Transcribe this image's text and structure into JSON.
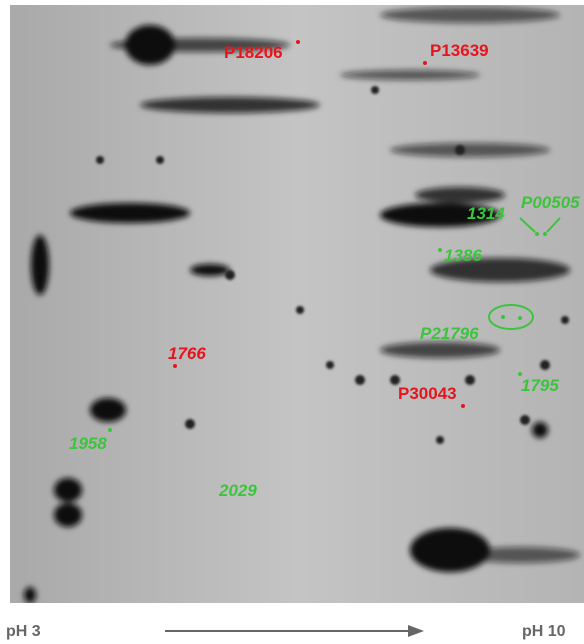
{
  "gel": {
    "labels": [
      {
        "text": "P18206",
        "color": "red"
      },
      {
        "text": "P13639",
        "color": "red"
      },
      {
        "text": "1314",
        "color": "green"
      },
      {
        "text": "P00505",
        "color": "green"
      },
      {
        "text": "1386",
        "color": "green"
      },
      {
        "text": "P21796",
        "color": "green"
      },
      {
        "text": "1766",
        "color": "red"
      },
      {
        "text": "P30043",
        "color": "red"
      },
      {
        "text": "1795",
        "color": "green"
      },
      {
        "text": "1958",
        "color": "green"
      },
      {
        "text": "2029",
        "color": "green"
      }
    ],
    "axis": {
      "left": "pH 3",
      "right": "pH 10"
    }
  }
}
